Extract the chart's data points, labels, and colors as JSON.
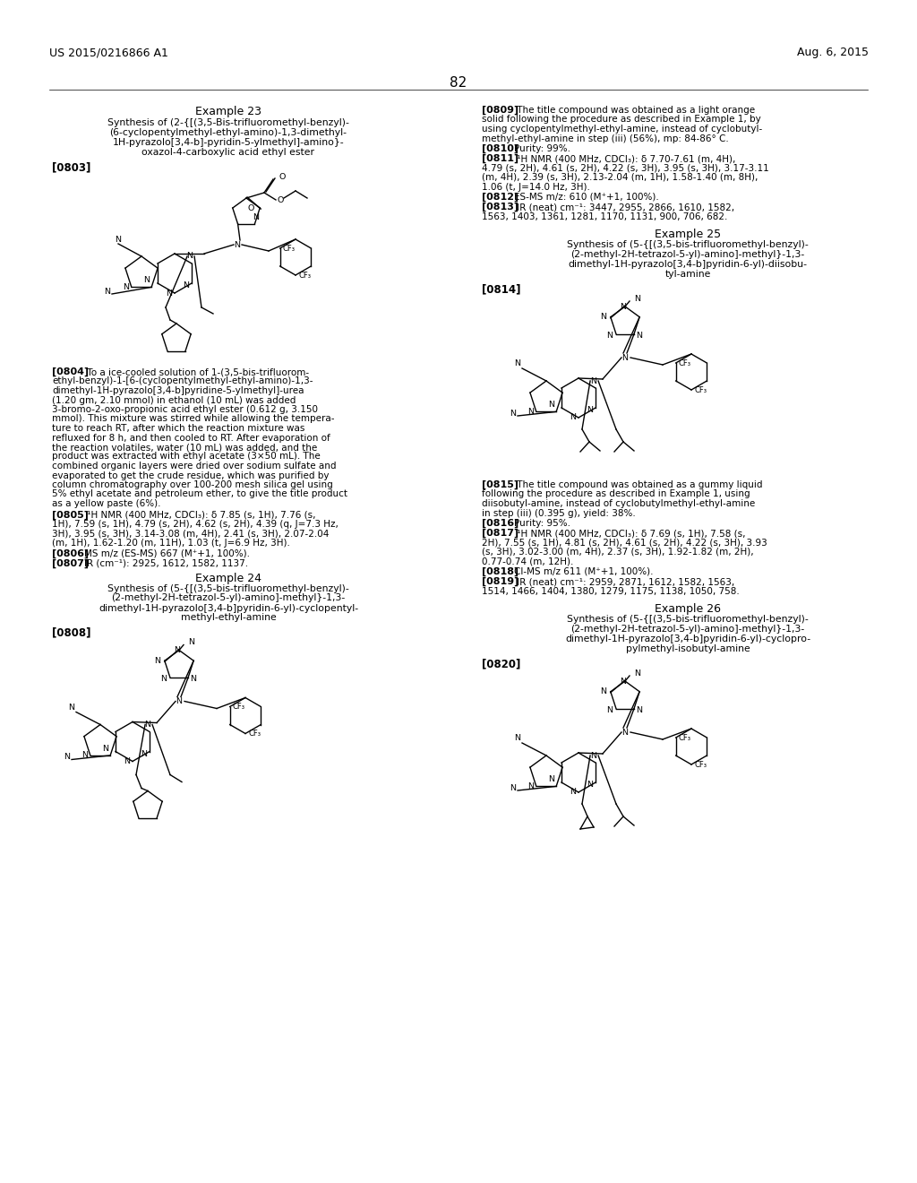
{
  "background_color": "#ffffff",
  "header_left": "US 2015/0216866 A1",
  "header_right": "Aug. 6, 2015",
  "page_number": "82"
}
